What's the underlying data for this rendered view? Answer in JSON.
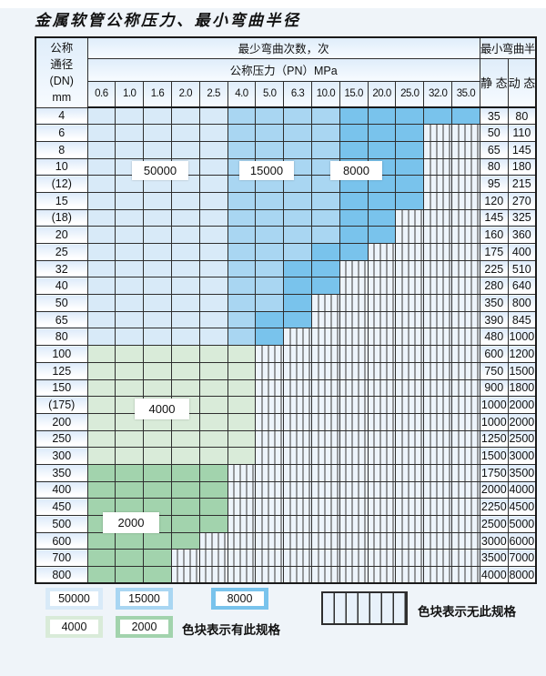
{
  "page": {
    "title": "金属软管公称压力、最小弯曲半径"
  },
  "table": {
    "corner": {
      "line1": "公称",
      "line2": "通径",
      "line3": "(DN)",
      "line4": "mm"
    },
    "cycles_header": "最少弯曲次数，次",
    "pressure_header": "公称压力（PN）MPa",
    "radius_header": "最小弯曲半径",
    "static_header": "静 态",
    "dynamic_header": "动 态",
    "pressure_columns": [
      "0.6",
      "1.0",
      "1.6",
      "2.0",
      "2.5",
      "4.0",
      "5.0",
      "6.3",
      "10.0",
      "15.0",
      "20.0",
      "25.0",
      "32.0",
      "35.0"
    ],
    "rows": [
      {
        "dn": "4",
        "cells": [
          "b1",
          "b1",
          "b1",
          "b1",
          "b1",
          "b2",
          "b2",
          "b2",
          "b2",
          "b3",
          "b3",
          "b3",
          "b3",
          "b3"
        ],
        "static": "35",
        "dynamic": "80"
      },
      {
        "dn": "6",
        "cells": [
          "b1",
          "b1",
          "b1",
          "b1",
          "b1",
          "b2",
          "b2",
          "b2",
          "b2",
          "b3",
          "b3",
          "b3",
          "x",
          "x"
        ],
        "static": "50",
        "dynamic": "110"
      },
      {
        "dn": "8",
        "cells": [
          "b1",
          "b1",
          "b1",
          "b1",
          "b1",
          "b2",
          "b2",
          "b2",
          "b2",
          "b3",
          "b3",
          "b3",
          "x",
          "x"
        ],
        "static": "65",
        "dynamic": "145"
      },
      {
        "dn": "10",
        "cells": [
          "b1",
          "b1",
          "b1",
          "b1",
          "b1",
          "b2",
          "b2",
          "b2",
          "b2",
          "b3",
          "b3",
          "b3",
          "x",
          "x"
        ],
        "static": "80",
        "dynamic": "180"
      },
      {
        "dn": "(12)",
        "cells": [
          "b1",
          "b1",
          "b1",
          "b1",
          "b1",
          "b2",
          "b2",
          "b2",
          "b2",
          "b3",
          "b3",
          "b3",
          "x",
          "x"
        ],
        "static": "95",
        "dynamic": "215"
      },
      {
        "dn": "15",
        "cells": [
          "b1",
          "b1",
          "b1",
          "b1",
          "b1",
          "b2",
          "b2",
          "b2",
          "b2",
          "b3",
          "b3",
          "b3",
          "x",
          "x"
        ],
        "static": "120",
        "dynamic": "270"
      },
      {
        "dn": "(18)",
        "cells": [
          "b1",
          "b1",
          "b1",
          "b1",
          "b1",
          "b2",
          "b2",
          "b2",
          "b2",
          "b3",
          "b3",
          "x",
          "x",
          "x"
        ],
        "static": "145",
        "dynamic": "325"
      },
      {
        "dn": "20",
        "cells": [
          "b1",
          "b1",
          "b1",
          "b1",
          "b1",
          "b2",
          "b2",
          "b2",
          "b2",
          "b3",
          "b3",
          "x",
          "x",
          "x"
        ],
        "static": "160",
        "dynamic": "360"
      },
      {
        "dn": "25",
        "cells": [
          "b1",
          "b1",
          "b1",
          "b1",
          "b1",
          "b2",
          "b2",
          "b2",
          "b3",
          "b3",
          "x",
          "x",
          "x",
          "x"
        ],
        "static": "175",
        "dynamic": "400"
      },
      {
        "dn": "32",
        "cells": [
          "b1",
          "b1",
          "b1",
          "b1",
          "b1",
          "b2",
          "b2",
          "b3",
          "b3",
          "x",
          "x",
          "x",
          "x",
          "x"
        ],
        "static": "225",
        "dynamic": "510"
      },
      {
        "dn": "40",
        "cells": [
          "b1",
          "b1",
          "b1",
          "b1",
          "b1",
          "b2",
          "b2",
          "b3",
          "b3",
          "x",
          "x",
          "x",
          "x",
          "x"
        ],
        "static": "280",
        "dynamic": "640"
      },
      {
        "dn": "50",
        "cells": [
          "b1",
          "b1",
          "b1",
          "b1",
          "b1",
          "b2",
          "b2",
          "b3",
          "x",
          "x",
          "x",
          "x",
          "x",
          "x"
        ],
        "static": "350",
        "dynamic": "800"
      },
      {
        "dn": "65",
        "cells": [
          "b1",
          "b1",
          "b1",
          "b1",
          "b1",
          "b2",
          "b3",
          "b3",
          "x",
          "x",
          "x",
          "x",
          "x",
          "x"
        ],
        "static": "390",
        "dynamic": "845"
      },
      {
        "dn": "80",
        "cells": [
          "b1",
          "b1",
          "b1",
          "b1",
          "b1",
          "b2",
          "b3",
          "x",
          "x",
          "x",
          "x",
          "x",
          "x",
          "x"
        ],
        "static": "480",
        "dynamic": "1000"
      },
      {
        "dn": "100",
        "cells": [
          "g1",
          "g1",
          "g1",
          "g1",
          "g1",
          "g1",
          "x",
          "x",
          "x",
          "x",
          "x",
          "x",
          "x",
          "x"
        ],
        "static": "600",
        "dynamic": "1200"
      },
      {
        "dn": "125",
        "cells": [
          "g1",
          "g1",
          "g1",
          "g1",
          "g1",
          "g1",
          "x",
          "x",
          "x",
          "x",
          "x",
          "x",
          "x",
          "x"
        ],
        "static": "750",
        "dynamic": "1500"
      },
      {
        "dn": "150",
        "cells": [
          "g1",
          "g1",
          "g1",
          "g1",
          "g1",
          "g1",
          "x",
          "x",
          "x",
          "x",
          "x",
          "x",
          "x",
          "x"
        ],
        "static": "900",
        "dynamic": "1800"
      },
      {
        "dn": "(175)",
        "cells": [
          "g1",
          "g1",
          "g1",
          "g1",
          "g1",
          "g1",
          "x",
          "x",
          "x",
          "x",
          "x",
          "x",
          "x",
          "x"
        ],
        "static": "1000",
        "dynamic": "2000"
      },
      {
        "dn": "200",
        "cells": [
          "g1",
          "g1",
          "g1",
          "g1",
          "g1",
          "g1",
          "x",
          "x",
          "x",
          "x",
          "x",
          "x",
          "x",
          "x"
        ],
        "static": "1000",
        "dynamic": "2000"
      },
      {
        "dn": "250",
        "cells": [
          "g1",
          "g1",
          "g1",
          "g1",
          "g1",
          "g1",
          "x",
          "x",
          "x",
          "x",
          "x",
          "x",
          "x",
          "x"
        ],
        "static": "1250",
        "dynamic": "2500"
      },
      {
        "dn": "300",
        "cells": [
          "g1",
          "g1",
          "g1",
          "g1",
          "g1",
          "g1",
          "x",
          "x",
          "x",
          "x",
          "x",
          "x",
          "x",
          "x"
        ],
        "static": "1500",
        "dynamic": "3000"
      },
      {
        "dn": "350",
        "cells": [
          "g2",
          "g2",
          "g2",
          "g2",
          "g2",
          "x",
          "x",
          "x",
          "x",
          "x",
          "x",
          "x",
          "x",
          "x"
        ],
        "static": "1750",
        "dynamic": "3500"
      },
      {
        "dn": "400",
        "cells": [
          "g2",
          "g2",
          "g2",
          "g2",
          "g2",
          "x",
          "x",
          "x",
          "x",
          "x",
          "x",
          "x",
          "x",
          "x"
        ],
        "static": "2000",
        "dynamic": "4000"
      },
      {
        "dn": "450",
        "cells": [
          "g2",
          "g2",
          "g2",
          "g2",
          "g2",
          "x",
          "x",
          "x",
          "x",
          "x",
          "x",
          "x",
          "x",
          "x"
        ],
        "static": "2250",
        "dynamic": "4500"
      },
      {
        "dn": "500",
        "cells": [
          "g2",
          "g2",
          "g2",
          "g2",
          "g2",
          "x",
          "x",
          "x",
          "x",
          "x",
          "x",
          "x",
          "x",
          "x"
        ],
        "static": "2500",
        "dynamic": "5000"
      },
      {
        "dn": "600",
        "cells": [
          "g2",
          "g2",
          "g2",
          "g2",
          "x",
          "x",
          "x",
          "x",
          "x",
          "x",
          "x",
          "x",
          "x",
          "x"
        ],
        "static": "3000",
        "dynamic": "6000"
      },
      {
        "dn": "700",
        "cells": [
          "g2",
          "g2",
          "g2",
          "x",
          "x",
          "x",
          "x",
          "x",
          "x",
          "x",
          "x",
          "x",
          "x",
          "x"
        ],
        "static": "3500",
        "dynamic": "7000"
      },
      {
        "dn": "800",
        "cells": [
          "g2",
          "g2",
          "g2",
          "x",
          "x",
          "x",
          "x",
          "x",
          "x",
          "x",
          "x",
          "x",
          "x",
          "x"
        ],
        "static": "4000",
        "dynamic": "8000"
      }
    ]
  },
  "colors": {
    "cycles_50000": "#d8eaf8",
    "cycles_15000": "#a9d6f2",
    "cycles_8000": "#79c3ec",
    "cycles_4000": "#d9ebd9",
    "cycles_2000": "#a2d3ad",
    "hatch_background": "#edf4fb",
    "grid_border": "#2e2e2e"
  },
  "overlays": [
    {
      "value": "50000"
    },
    {
      "value": "15000"
    },
    {
      "value": "8000"
    },
    {
      "value": "4000"
    },
    {
      "value": "2000"
    }
  ],
  "legend": {
    "items": [
      {
        "label": "50000",
        "color_key": "cycles_50000"
      },
      {
        "label": "15000",
        "color_key": "cycles_15000"
      },
      {
        "label": "8000",
        "color_key": "cycles_8000"
      },
      {
        "label": "4000",
        "color_key": "cycles_4000"
      },
      {
        "label": "2000",
        "color_key": "cycles_2000"
      }
    ],
    "has_spec_text": "色块表示有此规格",
    "no_spec_text": "色块表示无此规格"
  }
}
